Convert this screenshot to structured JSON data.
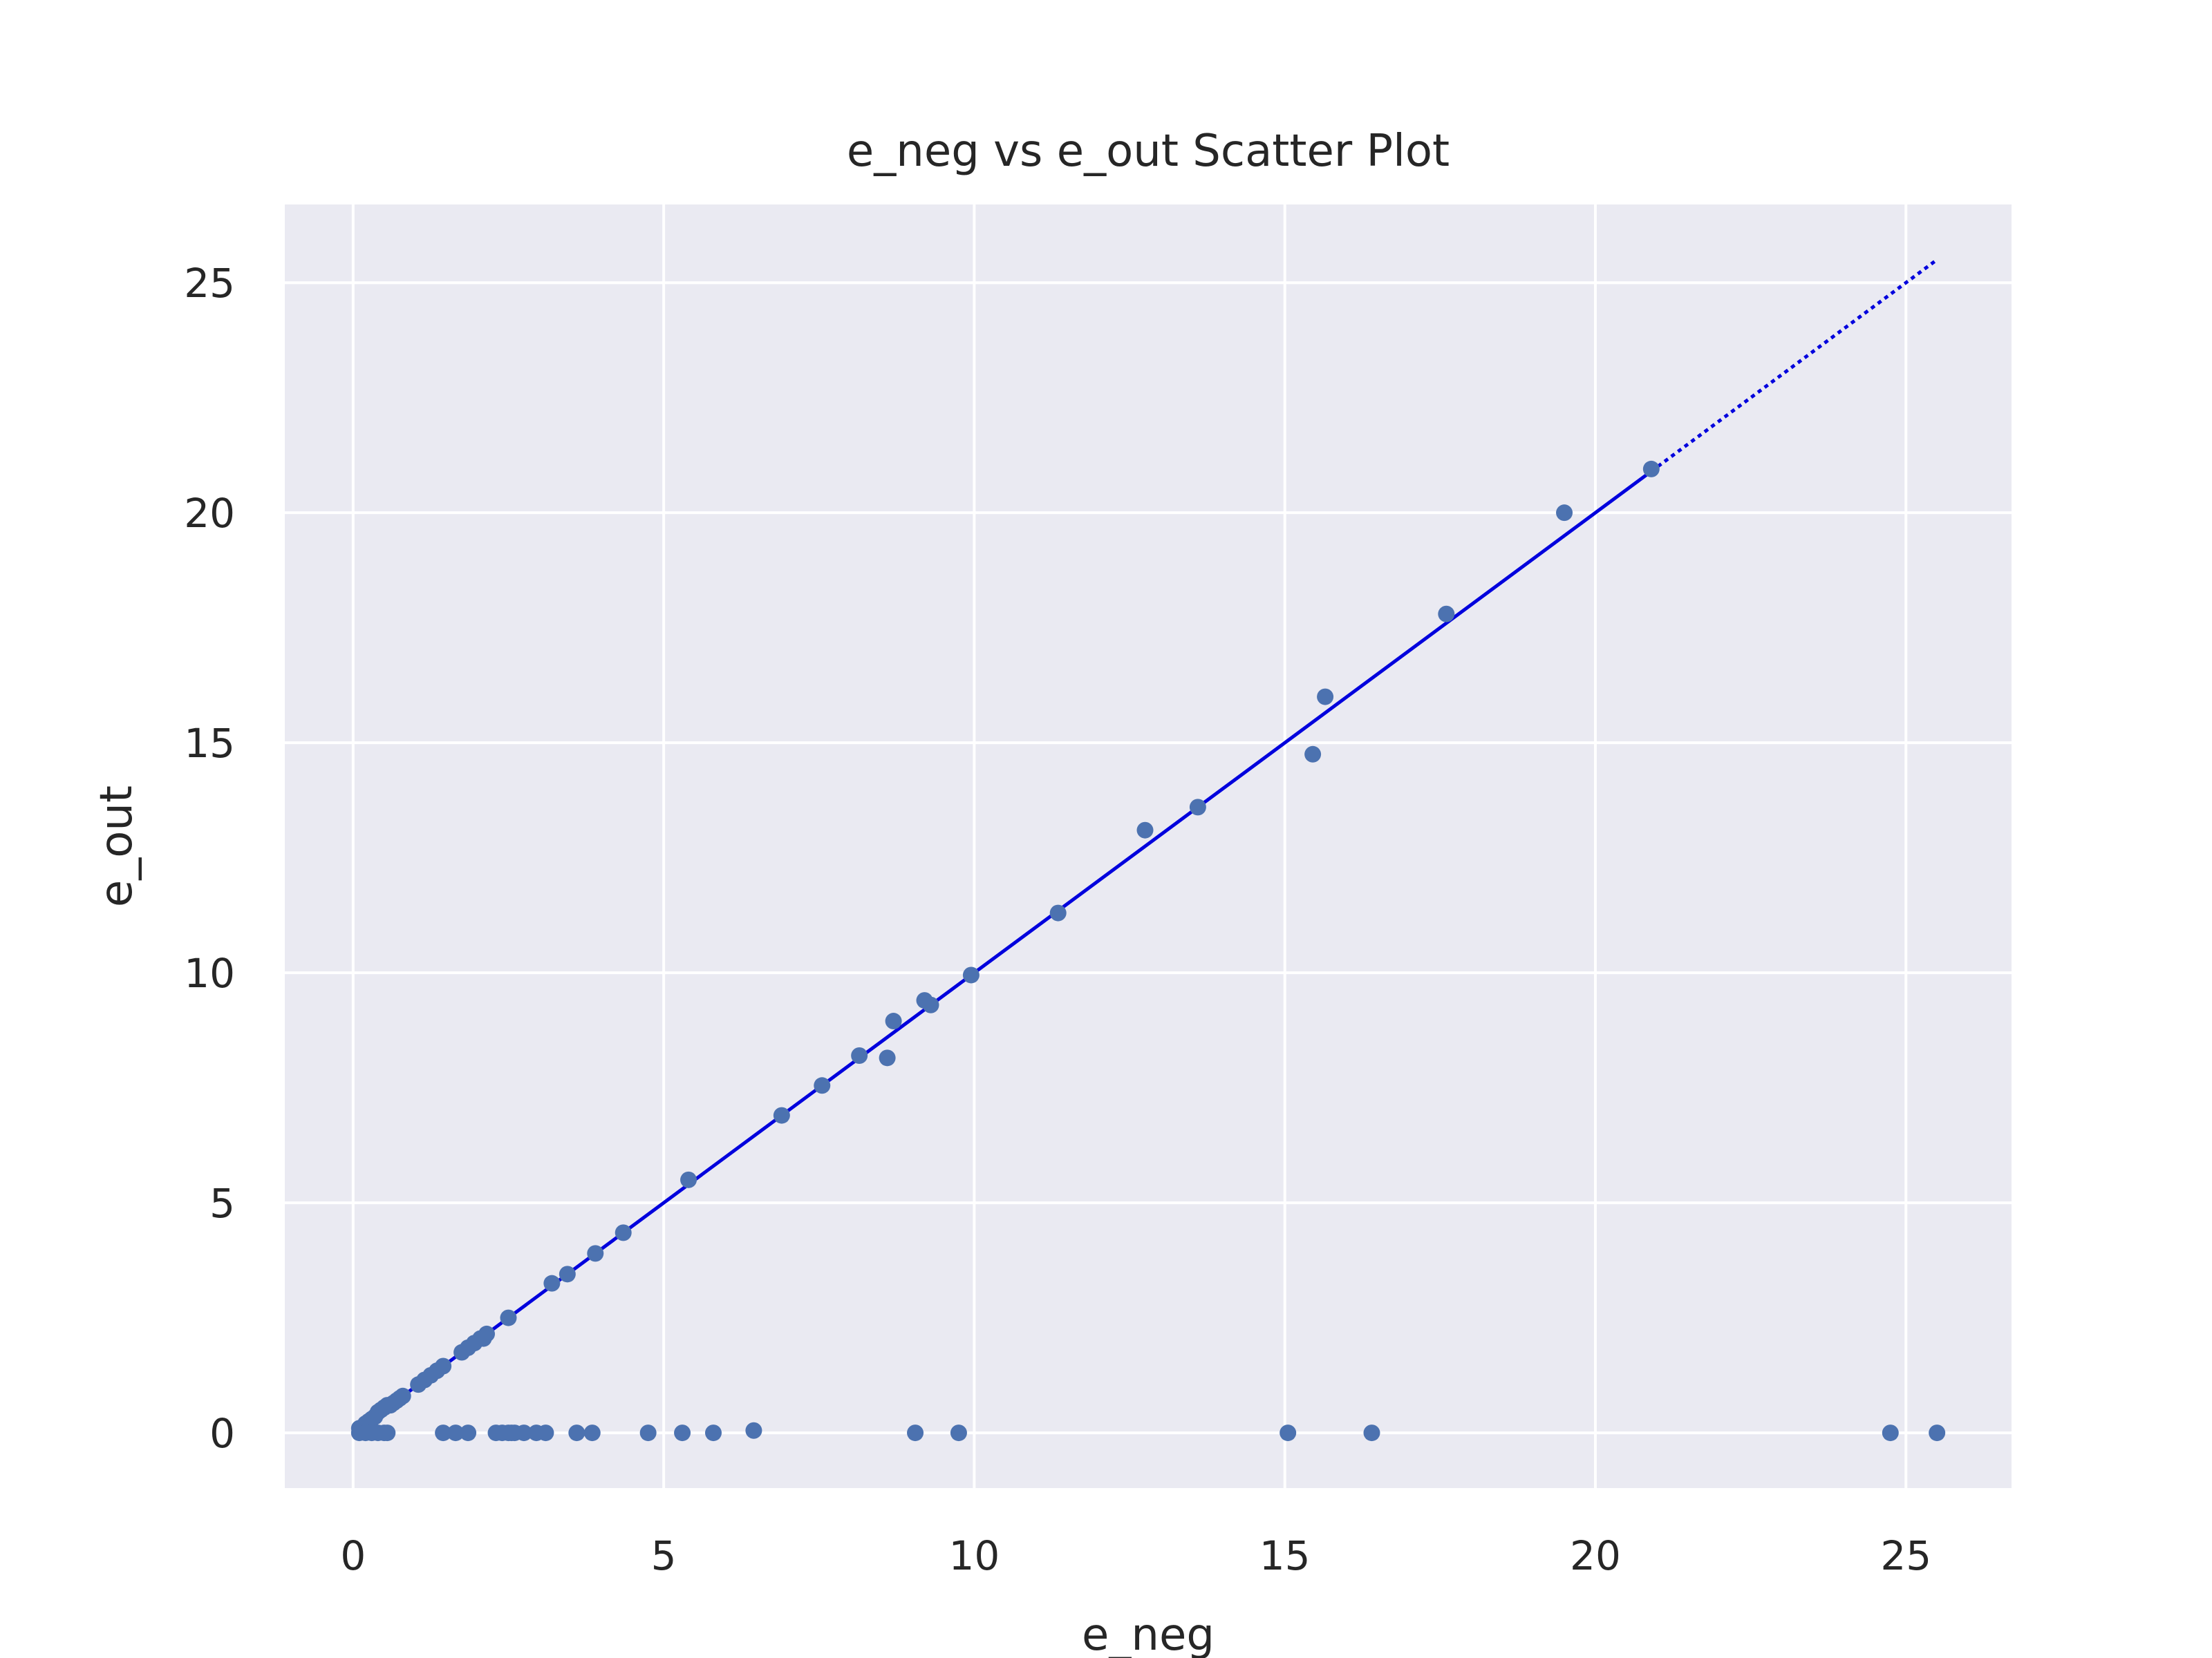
{
  "chart_data": {
    "type": "scatter",
    "title": "e_neg vs e_out Scatter Plot",
    "xlabel": "e_neg",
    "ylabel": "e_out",
    "xlim": [
      -1.1,
      26.7
    ],
    "ylim": [
      -1.2,
      26.7
    ],
    "xticks": [
      0,
      5,
      10,
      15,
      20,
      25
    ],
    "yticks": [
      0,
      5,
      10,
      15,
      20,
      25
    ],
    "grid": true,
    "colors": {
      "background": "#eaeaf2",
      "grid": "#ffffff",
      "points": "#4c72b0",
      "line": "#0000dd"
    },
    "series": [
      {
        "x": [
          0.1,
          0.2,
          0.25,
          0.3,
          0.35,
          0.4,
          0.45,
          0.5,
          0.55,
          0.6,
          0.65,
          0.7,
          0.75,
          0.8,
          1.05,
          1.15,
          1.25,
          1.35,
          1.45,
          1.75,
          1.85,
          1.95,
          2.05,
          2.1,
          2.15,
          2.5,
          3.2,
          3.45,
          3.9,
          4.35,
          5.4,
          6.9,
          7.55,
          8.15,
          8.6,
          8.7,
          9.2,
          9.3,
          9.95,
          11.35,
          12.75,
          13.6,
          15.45,
          15.65,
          17.6,
          19.5,
          20.9,
          0.1,
          0.2,
          0.3,
          0.4,
          0.5,
          0.55,
          1.45,
          1.65,
          1.85,
          2.3,
          2.4,
          2.5,
          2.55,
          2.6,
          2.75,
          2.95,
          3.1,
          3.6,
          3.85,
          4.75,
          5.3,
          5.8,
          6.45,
          9.05,
          9.75,
          15.05,
          16.4,
          24.75,
          25.5
        ],
        "y": [
          0.1,
          0.2,
          0.25,
          0.3,
          0.35,
          0.45,
          0.5,
          0.55,
          0.6,
          0.6,
          0.65,
          0.7,
          0.75,
          0.8,
          1.05,
          1.15,
          1.25,
          1.35,
          1.45,
          1.75,
          1.85,
          1.95,
          2.05,
          2.05,
          2.15,
          2.5,
          3.25,
          3.45,
          3.9,
          4.35,
          5.5,
          6.9,
          7.55,
          8.2,
          8.15,
          8.95,
          9.4,
          9.3,
          9.95,
          11.3,
          13.1,
          13.6,
          14.75,
          16.0,
          17.8,
          20.0,
          20.95,
          0,
          0,
          0,
          0,
          0,
          0,
          0,
          0,
          0,
          0,
          0,
          0,
          0,
          0,
          0,
          0,
          0,
          0,
          0,
          0,
          0,
          0,
          0.05,
          0,
          0,
          0,
          0,
          0,
          0
        ]
      }
    ],
    "trend_line": {
      "x": [
        0.1,
        20.9
      ],
      "y": [
        0.1,
        20.9
      ]
    },
    "trend_extension": {
      "x": [
        20.9,
        25.5
      ],
      "y": [
        20.9,
        25.5
      ]
    }
  }
}
